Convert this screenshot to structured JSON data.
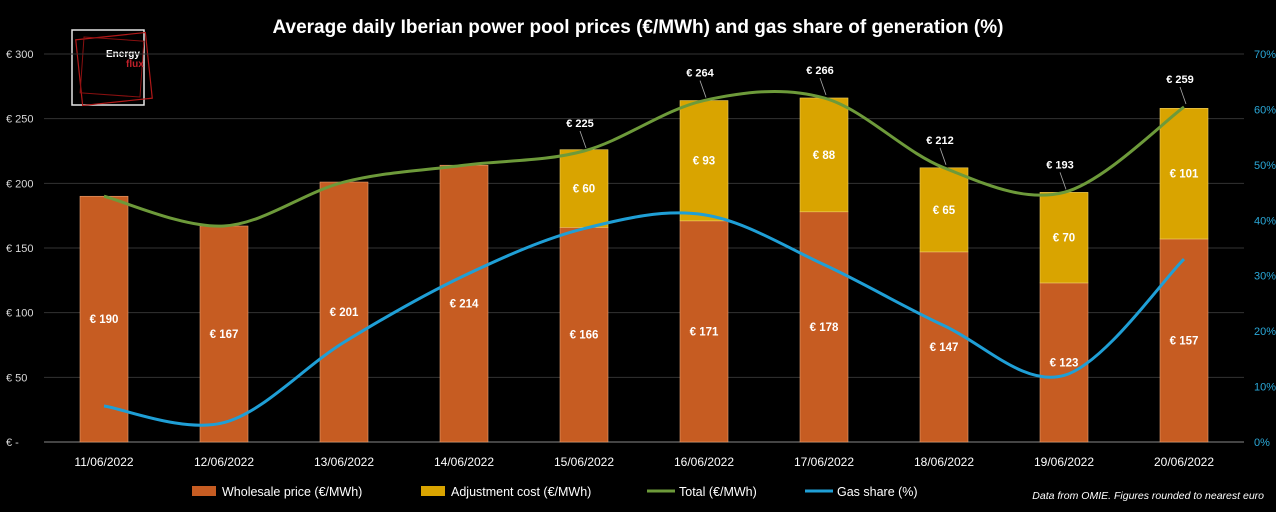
{
  "chart_data": {
    "type": "bar",
    "title": "Average daily Iberian power pool prices (€/MWh) and gas share of generation (%)",
    "categories": [
      "11/06/2022",
      "12/06/2022",
      "13/06/2022",
      "14/06/2022",
      "15/06/2022",
      "16/06/2022",
      "17/06/2022",
      "18/06/2022",
      "19/06/2022",
      "20/06/2022"
    ],
    "series": [
      {
        "name": "Wholesale price (€/MWh)",
        "kind": "stacked-bar",
        "color": "#c65c22",
        "values": [
          190,
          167,
          201,
          214,
          166,
          171,
          178,
          147,
          123,
          157
        ],
        "labels": [
          "€ 190",
          "€ 167",
          "€ 201",
          "€ 214",
          "€ 166",
          "€ 171",
          "€ 178",
          "€ 147",
          "€ 123",
          "€ 157"
        ]
      },
      {
        "name": "Adjustment cost (€/MWh)",
        "kind": "stacked-bar",
        "color": "#d9a400",
        "values": [
          0,
          0,
          0,
          0,
          60,
          93,
          88,
          65,
          70,
          101
        ],
        "labels": [
          "",
          "",
          "",
          "",
          "€ 60",
          "€ 93",
          "€ 88",
          "€ 65",
          "€ 70",
          "€ 101"
        ]
      },
      {
        "name": "Total (€/MWh)",
        "kind": "line",
        "color": "#6d9a3a",
        "values": [
          190,
          167,
          201,
          214,
          225,
          264,
          266,
          212,
          193,
          259
        ],
        "labels": [
          "",
          "",
          "",
          "",
          "€ 225",
          "€ 264",
          "€ 266",
          "€ 212",
          "€ 193",
          "€ 259"
        ]
      },
      {
        "name": "Gas share (%)",
        "kind": "line",
        "axis": "right",
        "color": "#1f9fd6",
        "values": [
          6.5,
          3.5,
          18,
          30,
          38.5,
          41,
          32,
          21,
          12,
          33
        ]
      }
    ],
    "ylim": [
      0,
      300
    ],
    "yticks": [
      "€ -",
      "€ 50",
      "€ 100",
      "€ 150",
      "€ 200",
      "€ 250",
      "€ 300"
    ],
    "y2lim": [
      0,
      70
    ],
    "y2ticks": [
      "0%",
      "10%",
      "20%",
      "30%",
      "40%",
      "50%",
      "60%",
      "70%"
    ],
    "grid": true,
    "legend": "bottom"
  },
  "logo": {
    "line1": "Energy",
    "line2": "flux"
  },
  "source_note": "Data from OMIE. Figures rounded to nearest euro"
}
